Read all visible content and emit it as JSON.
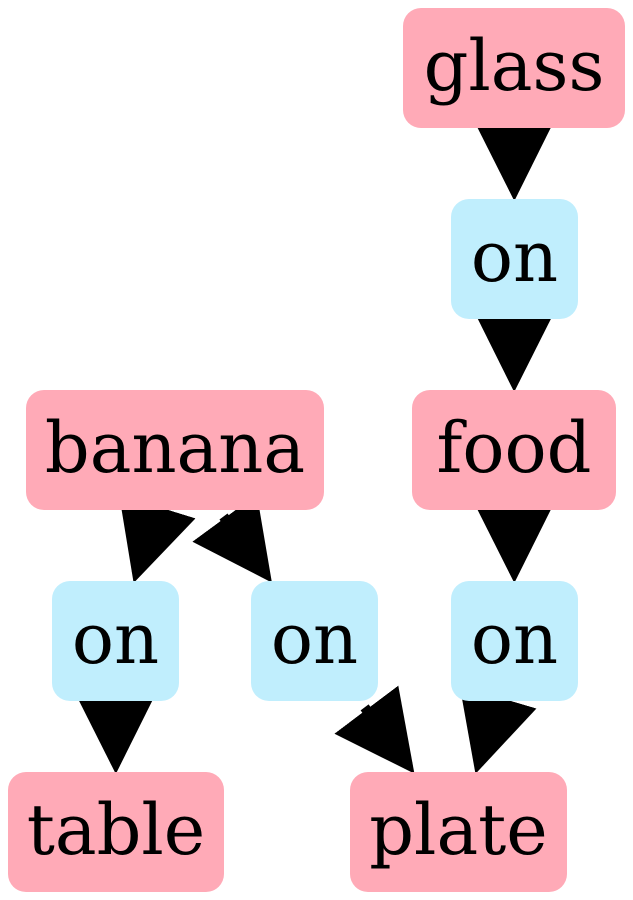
{
  "colors": {
    "object_node": "#ffaab7",
    "relation_node": "#c0eefd",
    "edge": "#000000",
    "text": "#000000"
  },
  "nodes": [
    {
      "id": "glass",
      "label": "glass",
      "kind": "object"
    },
    {
      "id": "on_glass_food",
      "label": "on",
      "kind": "relation"
    },
    {
      "id": "banana",
      "label": "banana",
      "kind": "object"
    },
    {
      "id": "food",
      "label": "food",
      "kind": "object"
    },
    {
      "id": "on_banana_table",
      "label": "on",
      "kind": "relation"
    },
    {
      "id": "on_banana_plate",
      "label": "on",
      "kind": "relation"
    },
    {
      "id": "on_food_plate",
      "label": "on",
      "kind": "relation"
    },
    {
      "id": "table",
      "label": "table",
      "kind": "object"
    },
    {
      "id": "plate",
      "label": "plate",
      "kind": "object"
    }
  ],
  "edges": [
    {
      "from": "glass",
      "to": "on_glass_food"
    },
    {
      "from": "on_glass_food",
      "to": "food"
    },
    {
      "from": "banana",
      "to": "on_banana_table"
    },
    {
      "from": "banana",
      "to": "on_banana_plate"
    },
    {
      "from": "food",
      "to": "on_food_plate"
    },
    {
      "from": "on_banana_table",
      "to": "table"
    },
    {
      "from": "on_banana_plate",
      "to": "plate"
    },
    {
      "from": "on_food_plate",
      "to": "plate"
    }
  ]
}
